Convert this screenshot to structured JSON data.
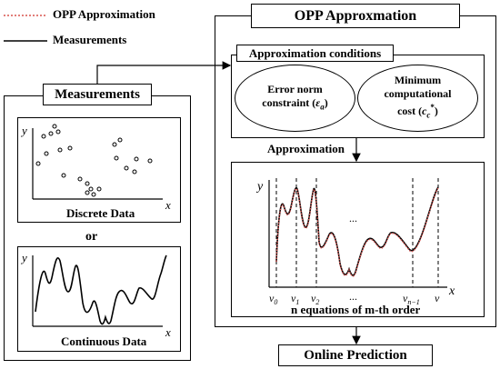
{
  "legend": {
    "items": [
      {
        "label": "OPP Approximation",
        "style": "dotted",
        "color": "#d9534f"
      },
      {
        "label": "Measurements",
        "style": "solid",
        "color": "#000000"
      }
    ]
  },
  "opp_panel": {
    "title": "OPP Approxmation"
  },
  "conditions": {
    "title": "Approximation conditions",
    "error_norm": {
      "line1": "Error norm",
      "line2": "constraint (",
      "symbol": "ε",
      "sub": "a",
      "close": ")"
    },
    "min_cost": {
      "line1": "Minimum",
      "line2": "computational",
      "line3": "cost (",
      "symbol": "c",
      "sub": "c",
      "sup": "*",
      "close": ")"
    }
  },
  "approximation": {
    "label": "Approximation",
    "axis_y": "y",
    "axis_x": "x",
    "ellipsis": "...",
    "ticks": [
      "v0",
      "v1",
      "v2",
      "...",
      "vn−1",
      "v"
    ],
    "caption": "n equations of m-th order"
  },
  "measurements_panel": {
    "title": "Measurements",
    "discrete": {
      "axis_y": "y",
      "axis_x": "x",
      "caption": "Discrete Data"
    },
    "or_label": "or",
    "continuous": {
      "axis_y": "y",
      "axis_x": "x",
      "caption": "Continuous Data"
    }
  },
  "online_prediction": {
    "label": "Online Prediction"
  },
  "colors": {
    "approx_line": "#d9534f",
    "measure_line": "#000000"
  }
}
